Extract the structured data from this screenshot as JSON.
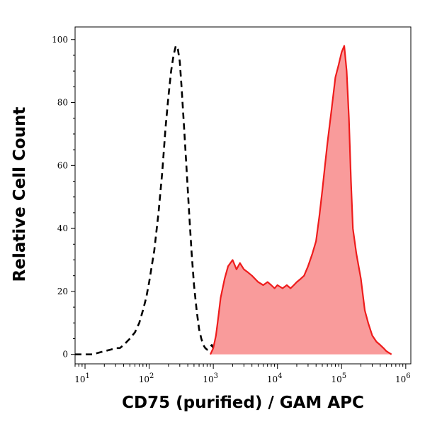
{
  "chart_data": {
    "type": "area",
    "title": "",
    "xlabel": "CD75 (purified) / GAM APC",
    "ylabel": "Relative Cell Count",
    "xscale": "log",
    "xlim": [
      7,
      1200000
    ],
    "ylim": [
      -3,
      104
    ],
    "x_ticks": [
      {
        "value": 10,
        "base": "10",
        "exp": "1"
      },
      {
        "value": 100,
        "base": "10",
        "exp": "2"
      },
      {
        "value": 1000,
        "base": "10",
        "exp": "3"
      },
      {
        "value": 10000,
        "base": "10",
        "exp": "4"
      },
      {
        "value": 100000,
        "base": "10",
        "exp": "5"
      },
      {
        "value": 1000000,
        "base": "10",
        "exp": "6"
      }
    ],
    "y_ticks": [
      0,
      20,
      40,
      60,
      80,
      100
    ],
    "grid": false,
    "legend": "none",
    "series": [
      {
        "style": "dashed",
        "color": "#000000",
        "x": [
          7,
          10,
          13,
          16,
          20,
          25,
          30,
          35,
          40,
          50,
          60,
          70,
          80,
          90,
          100,
          120,
          140,
          160,
          180,
          200,
          220,
          240,
          260,
          280,
          300,
          320,
          350,
          380,
          420,
          460,
          500,
          550,
          600,
          650,
          700,
          750,
          800,
          850,
          900,
          950,
          1000,
          1100,
          1200
        ],
        "y": [
          0,
          0,
          0,
          0.5,
          1,
          1.5,
          2,
          2,
          3,
          5,
          7,
          10,
          14,
          18,
          23,
          33,
          45,
          58,
          72,
          82,
          90,
          95,
          98,
          97,
          93,
          85,
          72,
          60,
          45,
          32,
          22,
          14,
          8,
          5,
          3,
          2,
          1.5,
          2,
          2.5,
          3,
          2,
          1,
          0.5
        ]
      },
      {
        "style": "filled",
        "color": "#ee1c1c",
        "fill": "#f99b9b",
        "x": [
          900,
          1000,
          1100,
          1200,
          1300,
          1500,
          1700,
          2000,
          2300,
          2600,
          3000,
          3500,
          4000,
          5000,
          6000,
          7000,
          8000,
          9000,
          10000,
          12000,
          14000,
          16000,
          18000,
          20000,
          23000,
          26000,
          30000,
          35000,
          40000,
          45000,
          50000,
          55000,
          60000,
          70000,
          80000,
          90000,
          100000,
          110000,
          120000,
          130000,
          140000,
          150000,
          170000,
          200000,
          230000,
          260000,
          300000,
          350000,
          400000,
          450000,
          500000,
          600000
        ],
        "y": [
          0,
          2,
          6,
          12,
          18,
          24,
          28,
          30,
          27,
          29,
          27,
          26,
          25,
          23,
          22,
          23,
          22,
          21,
          22,
          21,
          22,
          21,
          22,
          23,
          24,
          25,
          28,
          32,
          36,
          44,
          52,
          60,
          67,
          78,
          88,
          92,
          96,
          98,
          90,
          75,
          55,
          40,
          32,
          24,
          14,
          10,
          6,
          4,
          3,
          2,
          1,
          0
        ]
      }
    ]
  }
}
